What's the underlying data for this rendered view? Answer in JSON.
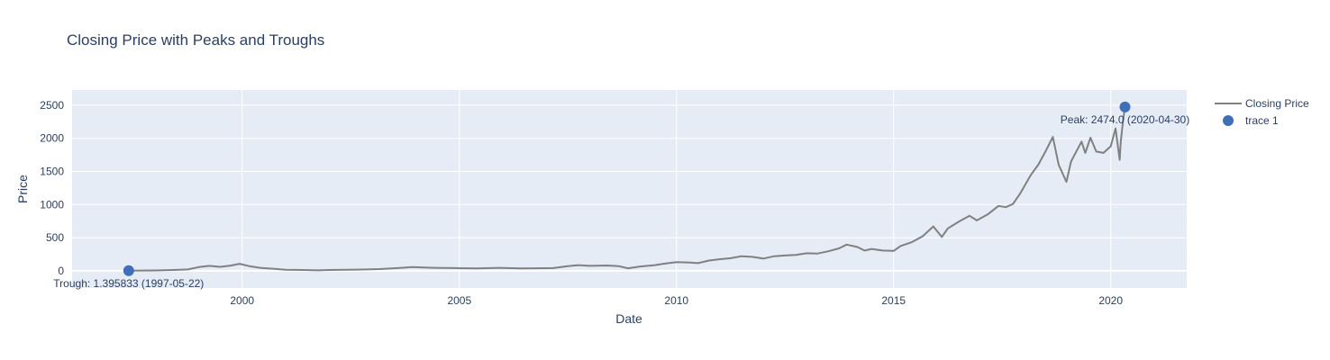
{
  "chart_data": {
    "type": "line",
    "title": "Closing Price with Peaks and Troughs",
    "xlabel": "Date",
    "ylabel": "Price",
    "xlim": [
      "1996-02-01",
      "2021-10-01"
    ],
    "ylim": [
      -260,
      2730
    ],
    "x_ticks": [
      "2000",
      "2005",
      "2010",
      "2015",
      "2020"
    ],
    "y_ticks": [
      0,
      500,
      1000,
      1500,
      2000,
      2500
    ],
    "grid": true,
    "legend_position": "right",
    "series": [
      {
        "name": "Closing Price",
        "color": "#808080",
        "mode": "line",
        "points": [
          [
            "1997-05-22",
            1.4
          ],
          [
            "1997-09-01",
            3
          ],
          [
            "1998-01-01",
            5
          ],
          [
            "1998-06-01",
            12
          ],
          [
            "1998-10-01",
            20
          ],
          [
            "1999-01-01",
            55
          ],
          [
            "1999-04-01",
            75
          ],
          [
            "1999-07-01",
            60
          ],
          [
            "1999-10-01",
            80
          ],
          [
            "1999-12-10",
            106
          ],
          [
            "2000-03-01",
            70
          ],
          [
            "2000-06-01",
            45
          ],
          [
            "2000-10-01",
            30
          ],
          [
            "2001-01-01",
            15
          ],
          [
            "2001-06-01",
            12
          ],
          [
            "2001-10-01",
            7
          ],
          [
            "2002-01-01",
            12
          ],
          [
            "2002-06-01",
            16
          ],
          [
            "2002-10-01",
            18
          ],
          [
            "2003-03-01",
            25
          ],
          [
            "2003-09-01",
            45
          ],
          [
            "2003-12-01",
            55
          ],
          [
            "2004-06-01",
            45
          ],
          [
            "2004-12-01",
            40
          ],
          [
            "2005-06-01",
            35
          ],
          [
            "2005-12-01",
            45
          ],
          [
            "2006-06-01",
            35
          ],
          [
            "2006-10-01",
            38
          ],
          [
            "2007-03-01",
            40
          ],
          [
            "2007-07-01",
            70
          ],
          [
            "2007-10-01",
            85
          ],
          [
            "2008-01-01",
            75
          ],
          [
            "2008-06-01",
            80
          ],
          [
            "2008-09-01",
            70
          ],
          [
            "2008-11-20",
            37
          ],
          [
            "2009-03-01",
            65
          ],
          [
            "2009-07-01",
            85
          ],
          [
            "2009-10-01",
            110
          ],
          [
            "2010-01-01",
            130
          ],
          [
            "2010-05-01",
            125
          ],
          [
            "2010-07-01",
            115
          ],
          [
            "2010-10-01",
            155
          ],
          [
            "2011-01-01",
            175
          ],
          [
            "2011-04-01",
            190
          ],
          [
            "2011-07-01",
            220
          ],
          [
            "2011-10-01",
            210
          ],
          [
            "2012-01-01",
            185
          ],
          [
            "2012-04-01",
            220
          ],
          [
            "2012-07-01",
            230
          ],
          [
            "2012-10-01",
            240
          ],
          [
            "2013-01-01",
            265
          ],
          [
            "2013-04-01",
            260
          ],
          [
            "2013-07-01",
            295
          ],
          [
            "2013-10-01",
            340
          ],
          [
            "2013-12-01",
            395
          ],
          [
            "2014-03-01",
            360
          ],
          [
            "2014-05-01",
            305
          ],
          [
            "2014-07-01",
            330
          ],
          [
            "2014-10-01",
            305
          ],
          [
            "2015-01-01",
            300
          ],
          [
            "2015-03-01",
            375
          ],
          [
            "2015-06-01",
            430
          ],
          [
            "2015-09-01",
            520
          ],
          [
            "2015-12-01",
            670
          ],
          [
            "2016-02-10",
            510
          ],
          [
            "2016-04-01",
            640
          ],
          [
            "2016-07-01",
            740
          ],
          [
            "2016-10-01",
            830
          ],
          [
            "2016-12-01",
            760
          ],
          [
            "2017-03-01",
            850
          ],
          [
            "2017-06-01",
            980
          ],
          [
            "2017-08-01",
            960
          ],
          [
            "2017-10-01",
            1010
          ],
          [
            "2017-12-01",
            1170
          ],
          [
            "2018-03-01",
            1450
          ],
          [
            "2018-05-01",
            1600
          ],
          [
            "2018-07-01",
            1800
          ],
          [
            "2018-09-01",
            2020
          ],
          [
            "2018-10-20",
            1600
          ],
          [
            "2018-12-24",
            1343
          ],
          [
            "2019-02-01",
            1650
          ],
          [
            "2019-04-01",
            1850
          ],
          [
            "2019-05-01",
            1950
          ],
          [
            "2019-06-01",
            1780
          ],
          [
            "2019-07-15",
            2010
          ],
          [
            "2019-09-01",
            1800
          ],
          [
            "2019-11-01",
            1780
          ],
          [
            "2020-01-01",
            1880
          ],
          [
            "2020-02-10",
            2150
          ],
          [
            "2020-03-16",
            1676
          ],
          [
            "2020-03-25",
            1950
          ],
          [
            "2020-04-14",
            2270
          ],
          [
            "2020-04-30",
            2474.0
          ]
        ]
      },
      {
        "name": "trace 1",
        "color": "#3f6fb9",
        "mode": "markers",
        "points": [
          [
            "1997-05-22",
            1.395833
          ],
          [
            "2020-04-30",
            2474.0
          ]
        ]
      }
    ],
    "annotations": [
      {
        "text": "Peak: 2474.0 (2020-04-30)",
        "x": "2020-04-30",
        "y": 2474.0
      },
      {
        "text": "Trough: 1.395833 (1997-05-22)",
        "x": "1997-05-22",
        "y": 1.395833
      }
    ]
  }
}
